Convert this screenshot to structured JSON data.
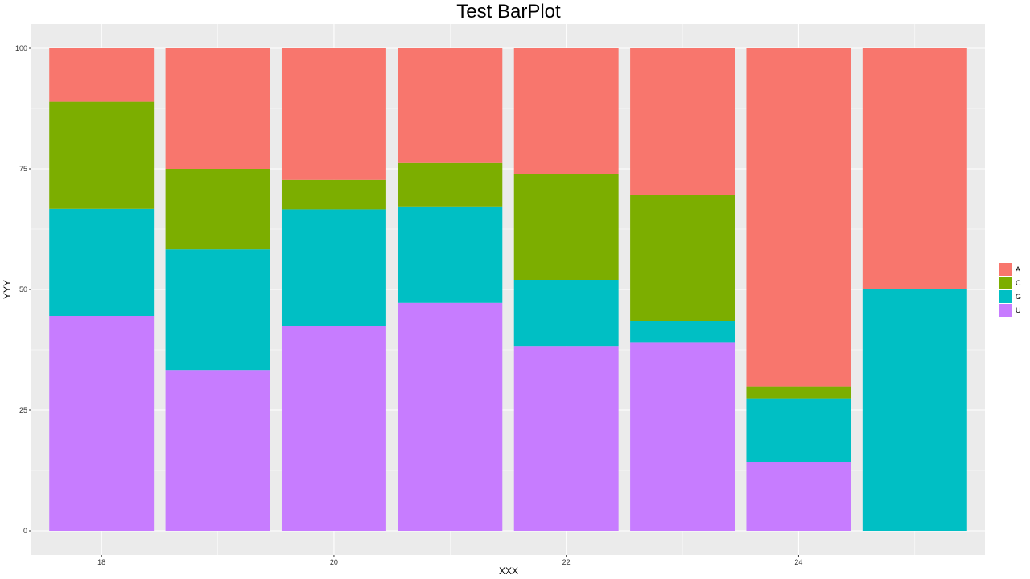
{
  "chart_data": {
    "type": "bar",
    "stacked": true,
    "title": "Test BarPlot",
    "xlabel": "XXX",
    "ylabel": "YYY",
    "x": [
      18,
      19,
      20,
      21,
      22,
      23,
      24,
      25
    ],
    "x_ticks": [
      18,
      20,
      22,
      24
    ],
    "xlim": [
      17.5,
      25.5
    ],
    "ylim": [
      0,
      100
    ],
    "y_ticks": [
      0,
      25,
      50,
      75,
      100
    ],
    "grid": true,
    "legend_position": "right",
    "series": [
      {
        "name": "A",
        "color": "#F8766D",
        "values": [
          11.1,
          25.0,
          27.3,
          23.8,
          26.0,
          30.4,
          70.1,
          50.0
        ]
      },
      {
        "name": "C",
        "color": "#7CAE00",
        "values": [
          22.2,
          16.7,
          6.1,
          9.0,
          22.0,
          26.1,
          2.5,
          0.0
        ]
      },
      {
        "name": "G",
        "color": "#00BFC4",
        "values": [
          22.2,
          25.0,
          24.2,
          20.0,
          13.7,
          4.4,
          13.2,
          50.0
        ]
      },
      {
        "name": "U",
        "color": "#C77CFF",
        "values": [
          44.5,
          33.3,
          42.4,
          47.2,
          38.3,
          39.1,
          14.2,
          0.0
        ]
      }
    ]
  }
}
